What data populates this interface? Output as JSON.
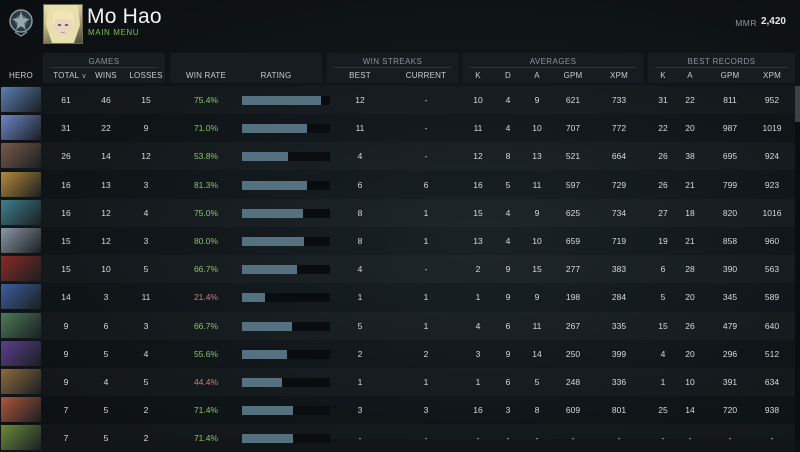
{
  "profile": {
    "name": "Mo Hao",
    "main_menu": "MAIN MENU",
    "mmr_label": "MMR",
    "mmr_value": "2,420"
  },
  "groups": {
    "games": "GAMES",
    "win_streaks": "WIN STREAKS",
    "averages": "AVERAGES",
    "best_records": "BEST RECORDS"
  },
  "columns": {
    "hero": "HERO",
    "total": "TOTAL",
    "wins": "WINS",
    "losses": "LOSSES",
    "win_rate": "WIN RATE",
    "rating": "RATING",
    "best": "BEST",
    "current": "CURRENT",
    "k": "K",
    "d": "D",
    "a": "A",
    "gpm": "GPM",
    "xpm": "XPM",
    "rk": "K",
    "ra": "A",
    "rgpm": "GPM",
    "rxpm": "XPM"
  },
  "colors": {
    "win_rate_good": "#8bc46a",
    "win_rate_bad": "#d07d7d",
    "rating_bar": "#55707e"
  },
  "rows": [
    {
      "hero_icon": "hero-portrait-icon",
      "icon_color": "#5b7fb3",
      "total": "61",
      "wins": "46",
      "losses": "15",
      "win_rate": "75.4%",
      "rating": 0.9,
      "best": "12",
      "current": "-",
      "k": "10",
      "d": "4",
      "a": "9",
      "gpm": "621",
      "xpm": "733",
      "rk": "31",
      "ra": "22",
      "rgpm": "811",
      "rxpm": "952"
    },
    {
      "hero_icon": "hero-portrait-icon",
      "icon_color": "#6f86c9",
      "total": "31",
      "wins": "22",
      "losses": "9",
      "win_rate": "71.0%",
      "rating": 0.74,
      "best": "11",
      "current": "-",
      "k": "11",
      "d": "4",
      "a": "10",
      "gpm": "707",
      "xpm": "772",
      "rk": "22",
      "ra": "20",
      "rgpm": "987",
      "rxpm": "1019"
    },
    {
      "hero_icon": "hero-portrait-icon",
      "icon_color": "#7a5a48",
      "total": "26",
      "wins": "14",
      "losses": "12",
      "win_rate": "53.8%",
      "rating": 0.52,
      "best": "4",
      "current": "-",
      "k": "12",
      "d": "8",
      "a": "13",
      "gpm": "521",
      "xpm": "664",
      "rk": "26",
      "ra": "38",
      "rgpm": "695",
      "rxpm": "924"
    },
    {
      "hero_icon": "hero-portrait-icon",
      "icon_color": "#b58a3a",
      "total": "16",
      "wins": "13",
      "losses": "3",
      "win_rate": "81.3%",
      "rating": 0.74,
      "best": "6",
      "current": "6",
      "k": "16",
      "d": "5",
      "a": "11",
      "gpm": "597",
      "xpm": "729",
      "rk": "26",
      "ra": "21",
      "rgpm": "799",
      "rxpm": "923"
    },
    {
      "hero_icon": "hero-portrait-icon",
      "icon_color": "#3f7f8c",
      "total": "16",
      "wins": "12",
      "losses": "4",
      "win_rate": "75.0%",
      "rating": 0.69,
      "best": "8",
      "current": "1",
      "k": "15",
      "d": "4",
      "a": "9",
      "gpm": "625",
      "xpm": "734",
      "rk": "27",
      "ra": "18",
      "rgpm": "820",
      "rxpm": "1016"
    },
    {
      "hero_icon": "hero-portrait-icon",
      "icon_color": "#8c97a6",
      "total": "15",
      "wins": "12",
      "losses": "3",
      "win_rate": "80.0%",
      "rating": 0.71,
      "best": "8",
      "current": "1",
      "k": "13",
      "d": "4",
      "a": "10",
      "gpm": "659",
      "xpm": "719",
      "rk": "19",
      "ra": "21",
      "rgpm": "858",
      "rxpm": "960"
    },
    {
      "hero_icon": "hero-portrait-icon",
      "icon_color": "#8a2a24",
      "total": "15",
      "wins": "10",
      "losses": "5",
      "win_rate": "66.7%",
      "rating": 0.62,
      "best": "4",
      "current": "-",
      "k": "2",
      "d": "9",
      "a": "15",
      "gpm": "277",
      "xpm": "383",
      "rk": "6",
      "ra": "28",
      "rgpm": "390",
      "rxpm": "563"
    },
    {
      "hero_icon": "hero-portrait-icon",
      "icon_color": "#3b5f9e",
      "total": "14",
      "wins": "3",
      "losses": "11",
      "win_rate": "21.4%",
      "rating": 0.26,
      "best": "1",
      "current": "1",
      "k": "1",
      "d": "9",
      "a": "9",
      "gpm": "198",
      "xpm": "284",
      "rk": "5",
      "ra": "20",
      "rgpm": "345",
      "rxpm": "589"
    },
    {
      "hero_icon": "hero-portrait-icon",
      "icon_color": "#4d7a5a",
      "total": "9",
      "wins": "6",
      "losses": "3",
      "win_rate": "66.7%",
      "rating": 0.57,
      "best": "5",
      "current": "1",
      "k": "4",
      "d": "6",
      "a": "11",
      "gpm": "267",
      "xpm": "335",
      "rk": "15",
      "ra": "26",
      "rgpm": "479",
      "rxpm": "640"
    },
    {
      "hero_icon": "hero-portrait-icon",
      "icon_color": "#5c3f8f",
      "total": "9",
      "wins": "5",
      "losses": "4",
      "win_rate": "55.6%",
      "rating": 0.51,
      "best": "2",
      "current": "2",
      "k": "3",
      "d": "9",
      "a": "14",
      "gpm": "250",
      "xpm": "399",
      "rk": "4",
      "ra": "20",
      "rgpm": "296",
      "rxpm": "512"
    },
    {
      "hero_icon": "hero-portrait-icon",
      "icon_color": "#8f6a3c",
      "total": "9",
      "wins": "4",
      "losses": "5",
      "win_rate": "44.4%",
      "rating": 0.45,
      "best": "1",
      "current": "1",
      "k": "1",
      "d": "6",
      "a": "5",
      "gpm": "248",
      "xpm": "336",
      "rk": "1",
      "ra": "10",
      "rgpm": "391",
      "rxpm": "634"
    },
    {
      "hero_icon": "hero-portrait-icon",
      "icon_color": "#b0553a",
      "total": "7",
      "wins": "5",
      "losses": "2",
      "win_rate": "71.4%",
      "rating": 0.58,
      "best": "3",
      "current": "3",
      "k": "16",
      "d": "3",
      "a": "8",
      "gpm": "609",
      "xpm": "801",
      "rk": "25",
      "ra": "14",
      "rgpm": "720",
      "rxpm": "938"
    },
    {
      "hero_icon": "hero-portrait-icon",
      "icon_color": "#6b8a3a",
      "total": "7",
      "wins": "5",
      "losses": "2",
      "win_rate": "71.4%",
      "rating": 0.58,
      "best": "-",
      "current": "-",
      "k": "-",
      "d": "-",
      "a": "-",
      "gpm": "-",
      "xpm": "-",
      "rk": "-",
      "ra": "-",
      "rgpm": "-",
      "rxpm": "-"
    }
  ]
}
